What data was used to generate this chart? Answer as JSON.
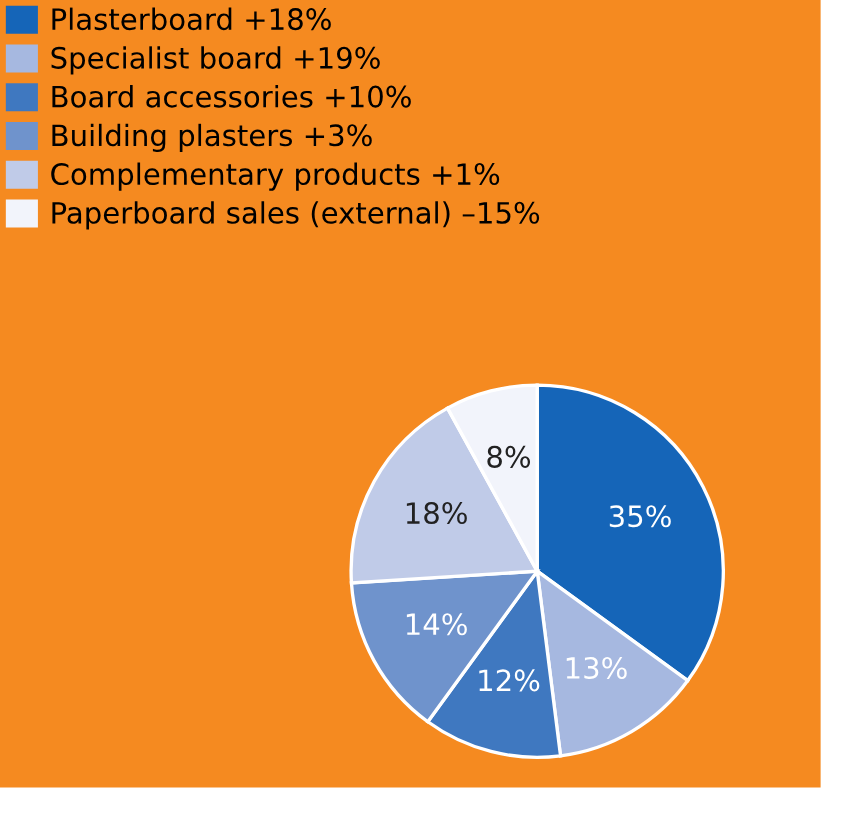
{
  "chart_data": {
    "type": "pie",
    "categories": [
      "Plasterboard +18%",
      "Specialist board +19%",
      "Board accessories +10%",
      "Building plasters +3%",
      "Complementary products +1%",
      "Paperboard sales (external) –15%"
    ],
    "values": [
      35,
      13,
      12,
      14,
      18,
      8
    ],
    "colors": [
      "#1565b8",
      "#a6b8e0",
      "#3f78c0",
      "#6f93cc",
      "#c0cbe8",
      "#f2f4fb"
    ],
    "value_labels": [
      "35%",
      "13%",
      "12%",
      "14%",
      "18%",
      "8%"
    ],
    "legend": "top left"
  }
}
